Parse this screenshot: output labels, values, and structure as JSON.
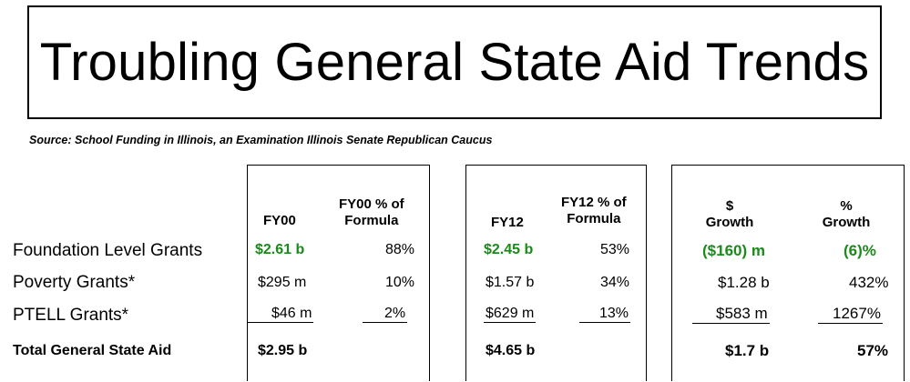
{
  "title": "Troubling General State Aid Trends",
  "source": "Source: School Funding in Illinois, an Examination  Illinois Senate Republican Caucus",
  "headers": {
    "fy00": "FY00",
    "fy00_pct_line1": "FY00 % of",
    "fy00_pct_line2": "Formula",
    "fy12": "FY12",
    "fy12_pct_line1": "FY12 % of",
    "fy12_pct_line2": "Formula",
    "dollar_line1": "$",
    "dollar_line2": "Growth",
    "pct_line1": "%",
    "pct_line2": "Growth"
  },
  "rows": [
    {
      "label": "Foundation Level Grants",
      "fy00": "$2.61 b",
      "fy00_pct": "88%",
      "fy12": "$2.45 b",
      "fy12_pct": "53%",
      "dollar_growth": "($160) m",
      "pct_growth": "(6)%"
    },
    {
      "label": "Poverty Grants*",
      "fy00": "$295 m",
      "fy00_pct": "10%",
      "fy12": "$1.57 b",
      "fy12_pct": "34%",
      "dollar_growth": "$1.28 b",
      "pct_growth": "432%"
    },
    {
      "label": "PTELL Grants*",
      "fy00": "$46 m",
      "fy00_pct": "2%",
      "fy12": "$629 m",
      "fy12_pct": "13%",
      "dollar_growth": "$583 m",
      "pct_growth": "1267%"
    },
    {
      "label": "Total General State Aid",
      "fy00": "$2.95 b",
      "fy00_pct": "",
      "fy12": "$4.65 b",
      "fy12_pct": "",
      "dollar_growth": "$1.7 b",
      "pct_growth": "57%"
    }
  ],
  "colors": {
    "highlight": "#1a8a1a"
  }
}
